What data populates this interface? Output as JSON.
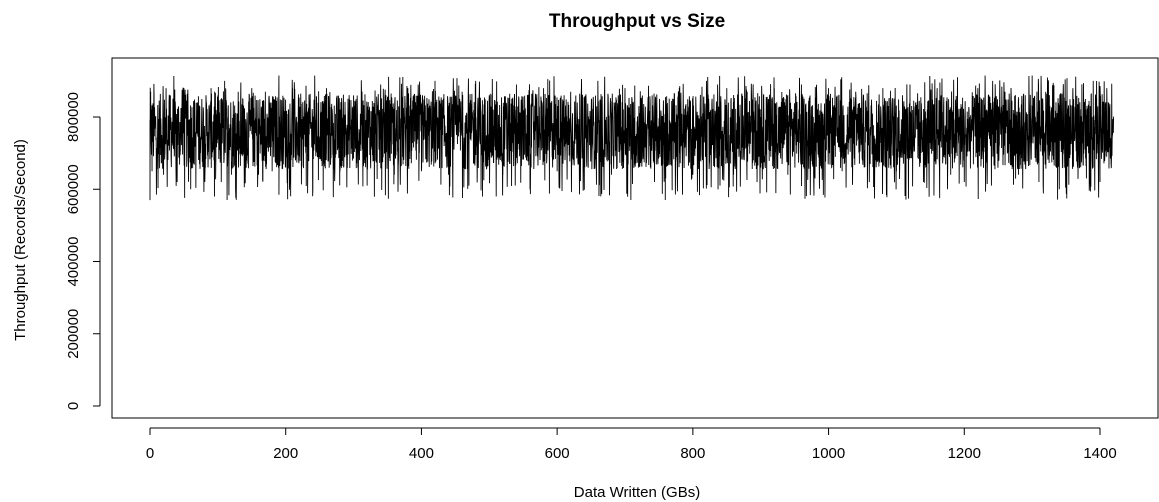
{
  "chart_data": {
    "type": "line",
    "title": "Throughput vs Size",
    "xlabel": "Data Written (GBs)",
    "ylabel": "Throughput (Records/Second)",
    "xlim": [
      0,
      1420
    ],
    "ylim": [
      0,
      920000
    ],
    "x_ticks": [
      0,
      200,
      400,
      600,
      800,
      1000,
      1200,
      1400
    ],
    "y_ticks": [
      0,
      200000,
      400000,
      600000,
      800000
    ],
    "grid": false,
    "legend": "none",
    "series": [
      {
        "color": "#000000",
        "mean": 760000,
        "typical_range": [
          650000,
          860000
        ],
        "min": 570000,
        "max": 915000,
        "x_start": 0,
        "x_end": 1420,
        "x": [
          0,
          0.5,
          1,
          3,
          6,
          10,
          15,
          20,
          30,
          40,
          50,
          60,
          70,
          80,
          90,
          95,
          100,
          105,
          110,
          120,
          130,
          140,
          150,
          160,
          170,
          180,
          190,
          200,
          210,
          220,
          230,
          240,
          260,
          280,
          300,
          320,
          340,
          360,
          380,
          400,
          420,
          440,
          460,
          470,
          480,
          490,
          500,
          520,
          540,
          560,
          580,
          600,
          620,
          640,
          660,
          680,
          700,
          720,
          740,
          760,
          780,
          800,
          820,
          840,
          850,
          860,
          880,
          900,
          920,
          940,
          960,
          980,
          1000,
          1020,
          1040,
          1060,
          1080,
          1100,
          1120,
          1140,
          1160,
          1180,
          1190,
          1200,
          1220,
          1240,
          1260,
          1280,
          1300,
          1310,
          1320,
          1340,
          1360,
          1380,
          1390,
          1400,
          1410,
          1420
        ],
        "y": [
          570000,
          840000,
          870000,
          650000,
          860000,
          700000,
          810000,
          640000,
          860000,
          620000,
          880000,
          600000,
          840000,
          650000,
          880000,
          580000,
          860000,
          620000,
          900000,
          640000,
          870000,
          660000,
          880000,
          640000,
          870000,
          650000,
          915000,
          660000,
          880000,
          690000,
          860000,
          600000,
          880000,
          650000,
          860000,
          610000,
          890000,
          640000,
          880000,
          650000,
          900000,
          640000,
          870000,
          610000,
          900000,
          580000,
          860000,
          640000,
          890000,
          600000,
          880000,
          650000,
          870000,
          620000,
          900000,
          640000,
          880000,
          660000,
          860000,
          630000,
          880000,
          640000,
          900000,
          610000,
          880000,
          640000,
          870000,
          660000,
          880000,
          640000,
          890000,
          630000,
          880000,
          650000,
          870000,
          620000,
          880000,
          650000,
          890000,
          620000,
          880000,
          640000,
          910000,
          620000,
          880000,
          610000,
          870000,
          640000,
          915000,
          620000,
          870000,
          600000,
          880000,
          630000,
          900000,
          620000,
          880000,
          790000
        ]
      }
    ]
  }
}
